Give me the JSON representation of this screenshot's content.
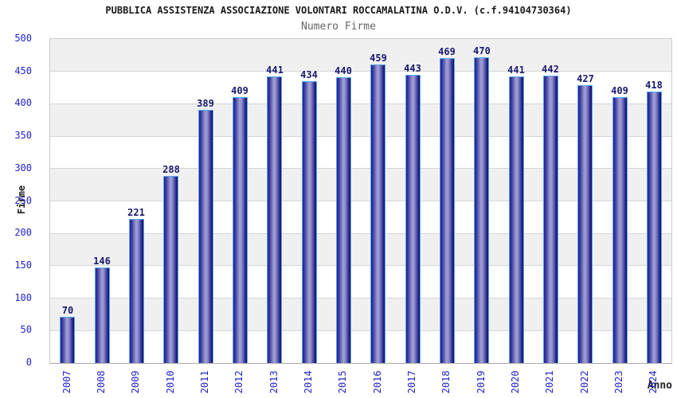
{
  "chart_data": {
    "type": "bar",
    "title": "PUBBLICA ASSISTENZA ASSOCIAZIONE VOLONTARI ROCCAMALATINA O.D.V. (c.f.94104730364)",
    "subtitle": "Numero Firme",
    "xlabel": "Anno",
    "ylabel": "Firme",
    "categories": [
      "2007",
      "2008",
      "2009",
      "2010",
      "2011",
      "2012",
      "2013",
      "2014",
      "2015",
      "2016",
      "2017",
      "2018",
      "2019",
      "2020",
      "2021",
      "2022",
      "2023",
      "2024"
    ],
    "values": [
      70,
      146,
      221,
      288,
      389,
      409,
      441,
      434,
      440,
      459,
      443,
      469,
      470,
      441,
      442,
      427,
      409,
      418
    ],
    "ylim": [
      0,
      500
    ],
    "ytick_step": 50,
    "y_ticks": [
      0,
      50,
      100,
      150,
      200,
      250,
      300,
      350,
      400,
      450,
      500
    ],
    "grid": true,
    "legend": "none",
    "band_colors": [
      "#f0f0f0",
      "#ffffff"
    ]
  },
  "colors": {
    "title": "#1a1a1a",
    "subtitle": "#666666",
    "axis_tick": "#2222cc",
    "value_label": "#191970",
    "axis_title": "#222222",
    "bar_border": "#58a8f0",
    "bar_edge": "#22228c",
    "bar_mid": "#a2a2d4",
    "bar_dark_end": "#10105a",
    "band_a": "#f0f0f0",
    "band_b": "#ffffff",
    "grid": "#d6d6d6",
    "plot_border": "#cccccc"
  }
}
